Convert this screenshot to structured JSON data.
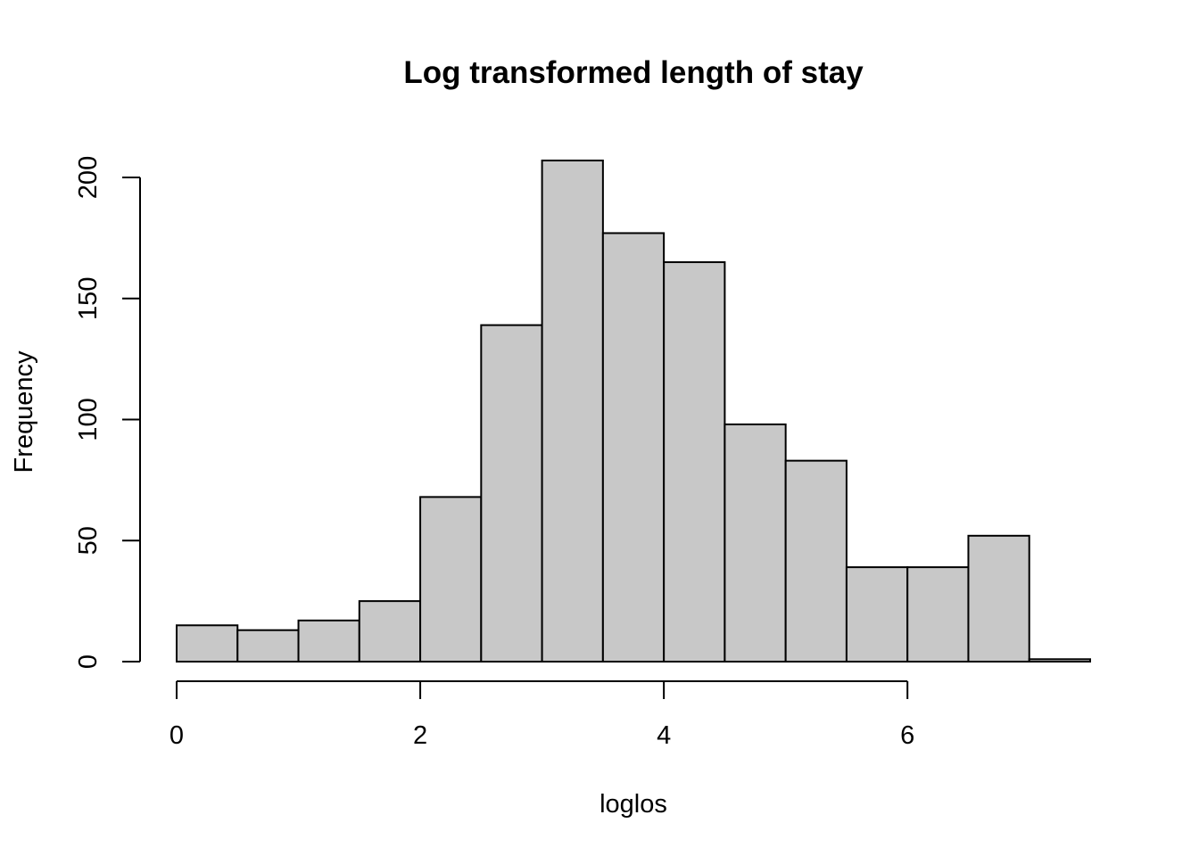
{
  "chart_data": {
    "type": "bar",
    "subtype": "histogram",
    "title": "Log transformed length of stay",
    "xlabel": "loglos",
    "ylabel": "Frequency",
    "bin_width": 0.5,
    "bins": [
      {
        "start": 0.0,
        "end": 0.5,
        "count": 15
      },
      {
        "start": 0.5,
        "end": 1.0,
        "count": 13
      },
      {
        "start": 1.0,
        "end": 1.5,
        "count": 17
      },
      {
        "start": 1.5,
        "end": 2.0,
        "count": 25
      },
      {
        "start": 2.0,
        "end": 2.5,
        "count": 68
      },
      {
        "start": 2.5,
        "end": 3.0,
        "count": 139
      },
      {
        "start": 3.0,
        "end": 3.5,
        "count": 207
      },
      {
        "start": 3.5,
        "end": 4.0,
        "count": 177
      },
      {
        "start": 4.0,
        "end": 4.5,
        "count": 165
      },
      {
        "start": 4.5,
        "end": 5.0,
        "count": 98
      },
      {
        "start": 5.0,
        "end": 5.5,
        "count": 83
      },
      {
        "start": 5.5,
        "end": 6.0,
        "count": 39
      },
      {
        "start": 6.0,
        "end": 6.5,
        "count": 39
      },
      {
        "start": 6.5,
        "end": 7.0,
        "count": 52
      },
      {
        "start": 7.0,
        "end": 7.5,
        "count": 1
      }
    ],
    "x_ticks": [
      0,
      2,
      4,
      6
    ],
    "y_ticks": [
      0,
      50,
      100,
      150,
      200
    ],
    "xlim": [
      0,
      7.5
    ],
    "ylim": [
      0,
      207
    ],
    "x_axis_range": [
      0,
      6
    ],
    "y_axis_range": [
      0,
      200
    ],
    "grid": false,
    "legend": "none",
    "bar_color": "#c8c8c8",
    "outline_color": "#000000"
  }
}
